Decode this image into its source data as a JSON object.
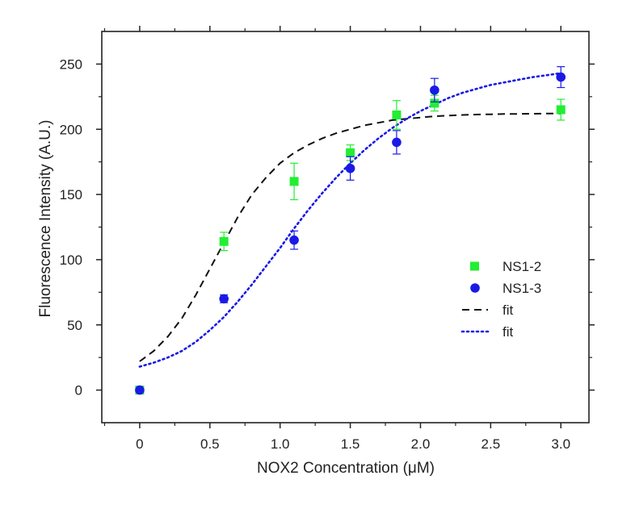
{
  "chart_data": {
    "type": "scatter",
    "title": "",
    "xlabel": "NOX2 Concentration (μM)",
    "ylabel": "Fluorescence Intensity (A.U.)",
    "xlim": [
      -0.27,
      3.2
    ],
    "ylim": [
      -25,
      275
    ],
    "x_ticks": [
      0,
      0.5,
      1.0,
      1.5,
      2.0,
      2.5,
      3.0
    ],
    "x_tick_labels": [
      "0",
      "0.5",
      "1.0",
      "1.5",
      "2.0",
      "2.5",
      "3.0"
    ],
    "y_ticks": [
      0,
      50,
      100,
      150,
      200,
      250
    ],
    "y_tick_labels": [
      "0",
      "50",
      "100",
      "150",
      "200",
      "250"
    ],
    "grid": false,
    "legend_position": "center-right",
    "series": [
      {
        "name": "NS1-2",
        "kind": "points",
        "marker": "square",
        "color": "#22ee33",
        "x": [
          0,
          0.6,
          1.1,
          1.5,
          1.83,
          2.1,
          3.0
        ],
        "y": [
          0,
          114,
          160,
          182,
          211,
          220,
          215
        ],
        "err": [
          0,
          7,
          14,
          6,
          11,
          6,
          8
        ]
      },
      {
        "name": "NS1-3",
        "kind": "points",
        "marker": "circle",
        "color": "#1a1ae6",
        "x": [
          0,
          0.6,
          1.1,
          1.5,
          1.83,
          2.1,
          3.0
        ],
        "y": [
          0,
          70,
          115,
          170,
          190,
          230,
          240
        ],
        "err": [
          0,
          3,
          7,
          9,
          9,
          9,
          8
        ]
      },
      {
        "name": "fit",
        "kind": "line",
        "dash": "dashed",
        "color": "#111111",
        "x": [
          0,
          0.1,
          0.2,
          0.3,
          0.4,
          0.5,
          0.6,
          0.7,
          0.8,
          0.9,
          1.0,
          1.1,
          1.2,
          1.3,
          1.4,
          1.5,
          1.6,
          1.7,
          1.8,
          1.9,
          2.0,
          2.1,
          2.2,
          2.3,
          2.4,
          2.5,
          2.6,
          2.7,
          2.8,
          2.9,
          3.0
        ],
        "y": [
          22,
          30,
          41,
          55,
          73,
          93,
          113,
          133,
          150,
          163,
          174,
          182,
          188,
          193,
          197,
          200,
          203,
          205,
          207,
          208,
          209,
          210,
          210.5,
          211,
          211.3,
          211.5,
          211.7,
          211.8,
          211.9,
          212,
          212
        ]
      },
      {
        "name": "fit",
        "kind": "line",
        "dash": "dotted",
        "color": "#1a1ae6",
        "x": [
          0,
          0.1,
          0.2,
          0.3,
          0.4,
          0.5,
          0.6,
          0.7,
          0.8,
          0.9,
          1.0,
          1.1,
          1.2,
          1.3,
          1.4,
          1.5,
          1.6,
          1.7,
          1.8,
          1.9,
          2.0,
          2.1,
          2.2,
          2.3,
          2.4,
          2.5,
          2.6,
          2.7,
          2.8,
          2.9,
          3.0
        ],
        "y": [
          18,
          21,
          25,
          30,
          37,
          46,
          56,
          68,
          81,
          95,
          109,
          124,
          138,
          151,
          163,
          174,
          184,
          193,
          201,
          208,
          214,
          219,
          224,
          228,
          231,
          234,
          236,
          238,
          240,
          241.5,
          243
        ]
      }
    ]
  }
}
